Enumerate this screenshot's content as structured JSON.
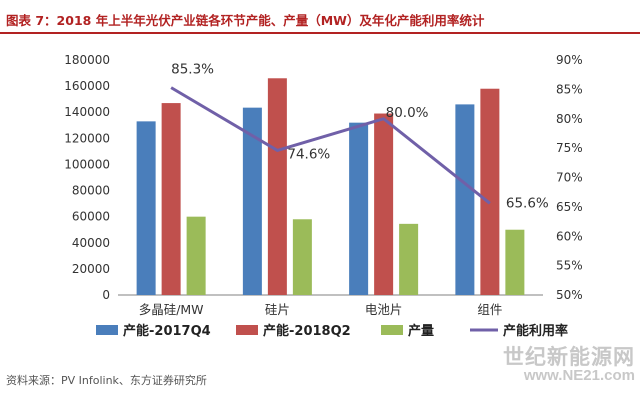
{
  "header": {
    "title": "图表 7：2018 年上半年光伏产业链各环节产能、产量（MW）及年化产能利用率统计"
  },
  "chart_data": {
    "type": "bar",
    "categories": [
      "多晶硅/MW",
      "硅片",
      "电池片",
      "组件"
    ],
    "series": [
      {
        "name": "产能-2017Q4",
        "kind": "bar",
        "axis": "left",
        "color": "#4a7ebb",
        "values": [
          133000,
          143500,
          132000,
          146000
        ]
      },
      {
        "name": "产能-2018Q2",
        "kind": "bar",
        "axis": "left",
        "color": "#c0504d",
        "values": [
          147000,
          166000,
          139000,
          158000
        ]
      },
      {
        "name": "产量",
        "kind": "bar",
        "axis": "left",
        "color": "#9bbb59",
        "values": [
          60000,
          58000,
          54500,
          50000
        ]
      },
      {
        "name": "产能利用率",
        "kind": "line",
        "axis": "right",
        "color": "#7060a8",
        "values": [
          85.3,
          74.6,
          80.0,
          65.6
        ],
        "labels": [
          "85.3%",
          "74.6%",
          "80.0%",
          "65.6%"
        ]
      }
    ],
    "y_left": {
      "min": 0,
      "max": 180000,
      "step": 20000,
      "ticks": [
        "0",
        "20000",
        "40000",
        "60000",
        "80000",
        "100000",
        "120000",
        "140000",
        "160000",
        "180000"
      ]
    },
    "y_right": {
      "min": 50,
      "max": 90,
      "step": 5,
      "ticks": [
        "50%",
        "55%",
        "60%",
        "65%",
        "70%",
        "75%",
        "80%",
        "85%",
        "90%"
      ]
    },
    "grid": false,
    "legend_position": "bottom"
  },
  "footer": {
    "source": "资料来源：PV Infolink、东方证券研究所",
    "watermark_cn": "世纪新能源网",
    "watermark_url": "www.NE21.com"
  }
}
